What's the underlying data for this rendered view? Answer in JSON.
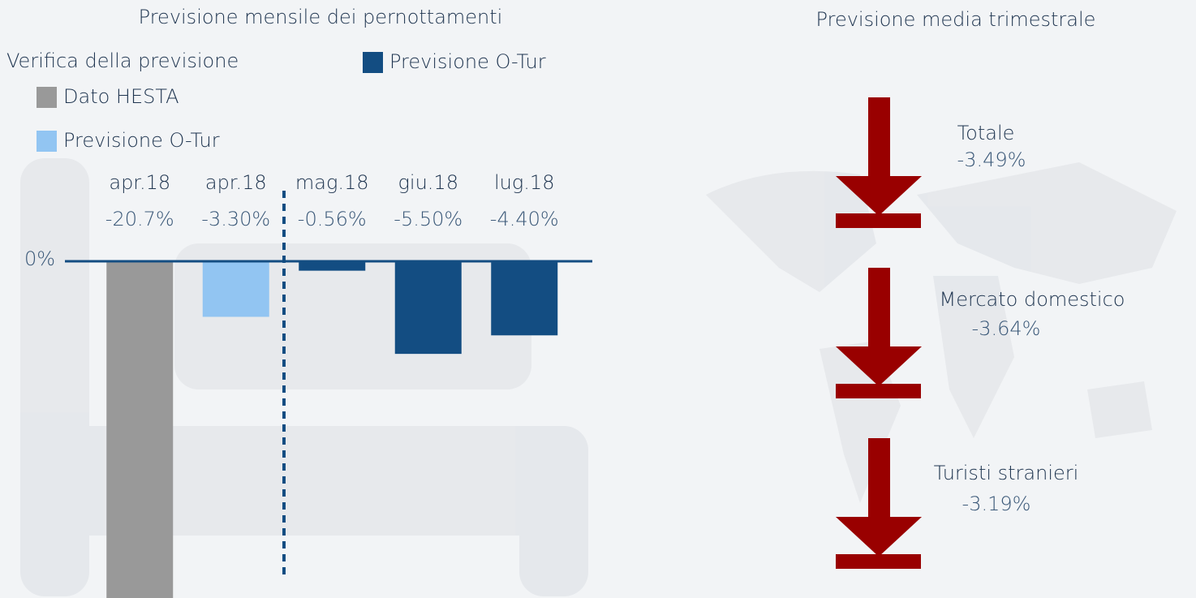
{
  "chart_data": {
    "type": "bar",
    "title": "Previsione mensile dei pernottamenti",
    "legend_title": "Verifica della previsione",
    "categories": [
      "apr.18",
      "apr.18",
      "mag.18",
      "giu.18",
      "lug.18"
    ],
    "series": [
      {
        "name": "Dato HESTA",
        "color": "#999999",
        "values": [
          -20.7,
          null,
          null,
          null,
          null
        ],
        "value_labels": [
          "-20.7%",
          null,
          null,
          null,
          null
        ]
      },
      {
        "name": "Previsione O-Tur",
        "color": "#92c5f2",
        "values": [
          null,
          -3.3,
          null,
          null,
          null
        ],
        "value_labels": [
          null,
          "-3.30%",
          null,
          null,
          null
        ]
      },
      {
        "name": "Previsione O-Tur",
        "color": "#134d82",
        "values": [
          null,
          null,
          -0.56,
          -5.5,
          -4.4
        ],
        "value_labels": [
          null,
          null,
          "-0.56%",
          "-5.50%",
          "-4.40%"
        ]
      }
    ],
    "ylim": [
      -20,
      0
    ],
    "yticks": [
      {
        "value": 0,
        "label": "0%"
      }
    ]
  },
  "quarterly": {
    "title": "Previsione media trimestrale",
    "items": [
      {
        "label": "Totale",
        "change": "-3.49%"
      },
      {
        "label": "Mercato domestico",
        "change": "-3.64%"
      },
      {
        "label": "Turisti stranieri",
        "change": "-3.19%"
      }
    ]
  }
}
